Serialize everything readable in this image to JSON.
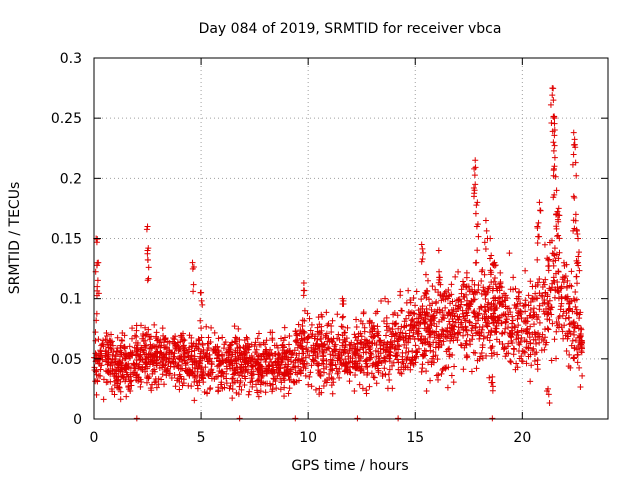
{
  "chart_data": {
    "type": "scatter",
    "title": "Day 084 of 2019, SRMTID for receiver vbca",
    "xlabel": "GPS time / hours",
    "ylabel": "SRMTID / TECUs",
    "xlim": [
      0,
      24
    ],
    "ylim": [
      0,
      0.3
    ],
    "xticks": [
      0,
      5,
      10,
      15,
      20
    ],
    "xtick_labels": [
      "0",
      "5",
      "10",
      "15",
      "20"
    ],
    "yticks": [
      0,
      0.05,
      0.1,
      0.15,
      0.2,
      0.25,
      0.3
    ],
    "ytick_labels": [
      "0",
      "0.05",
      "0.1",
      "0.15",
      "0.2",
      "0.25",
      "0.3"
    ],
    "grid": true,
    "marker": "+",
    "series": [
      {
        "name": "SRMTID",
        "color": "#e00000",
        "trend": [
          [
            0.0,
            0.045
          ],
          [
            0.5,
            0.05
          ],
          [
            1.0,
            0.045
          ],
          [
            2.0,
            0.05
          ],
          [
            3.0,
            0.052
          ],
          [
            4.0,
            0.048
          ],
          [
            5.0,
            0.05
          ],
          [
            6.0,
            0.047
          ],
          [
            7.0,
            0.045
          ],
          [
            8.0,
            0.045
          ],
          [
            9.0,
            0.047
          ],
          [
            10.0,
            0.06
          ],
          [
            11.0,
            0.055
          ],
          [
            12.0,
            0.052
          ],
          [
            13.0,
            0.058
          ],
          [
            14.0,
            0.065
          ],
          [
            15.0,
            0.07
          ],
          [
            16.0,
            0.075
          ],
          [
            17.0,
            0.08
          ],
          [
            18.0,
            0.09
          ],
          [
            19.0,
            0.085
          ],
          [
            20.0,
            0.075
          ],
          [
            21.0,
            0.085
          ],
          [
            21.5,
            0.12
          ],
          [
            22.0,
            0.09
          ],
          [
            22.8,
            0.065
          ]
        ],
        "spikes": [
          [
            0.1,
            0.15
          ],
          [
            0.2,
            0.13
          ],
          [
            0.15,
            0.11
          ],
          [
            2.5,
            0.16
          ],
          [
            2.5,
            0.14
          ],
          [
            4.6,
            0.13
          ],
          [
            5.0,
            0.105
          ],
          [
            9.8,
            0.113
          ],
          [
            11.6,
            0.1
          ],
          [
            15.3,
            0.145
          ],
          [
            15.5,
            0.12
          ],
          [
            16.1,
            0.14
          ],
          [
            17.8,
            0.215
          ],
          [
            17.8,
            0.195
          ],
          [
            17.9,
            0.18
          ],
          [
            18.3,
            0.165
          ],
          [
            18.5,
            0.15
          ],
          [
            18.7,
            0.13
          ],
          [
            20.8,
            0.18
          ],
          [
            20.7,
            0.16
          ],
          [
            21.4,
            0.275
          ],
          [
            21.45,
            0.265
          ],
          [
            21.5,
            0.25
          ],
          [
            21.45,
            0.23
          ],
          [
            21.5,
            0.21
          ],
          [
            21.6,
            0.19
          ],
          [
            21.7,
            0.175
          ],
          [
            22.4,
            0.238
          ],
          [
            22.45,
            0.228
          ],
          [
            22.4,
            0.185
          ],
          [
            22.5,
            0.17
          ],
          [
            22.6,
            0.15
          ],
          [
            22.6,
            0.13
          ],
          [
            21.2,
            0.025
          ],
          [
            18.6,
            0.035
          ]
        ],
        "zeros": [
          2.0,
          6.8,
          9.4,
          12.3,
          14.2,
          18.6
        ]
      }
    ]
  }
}
